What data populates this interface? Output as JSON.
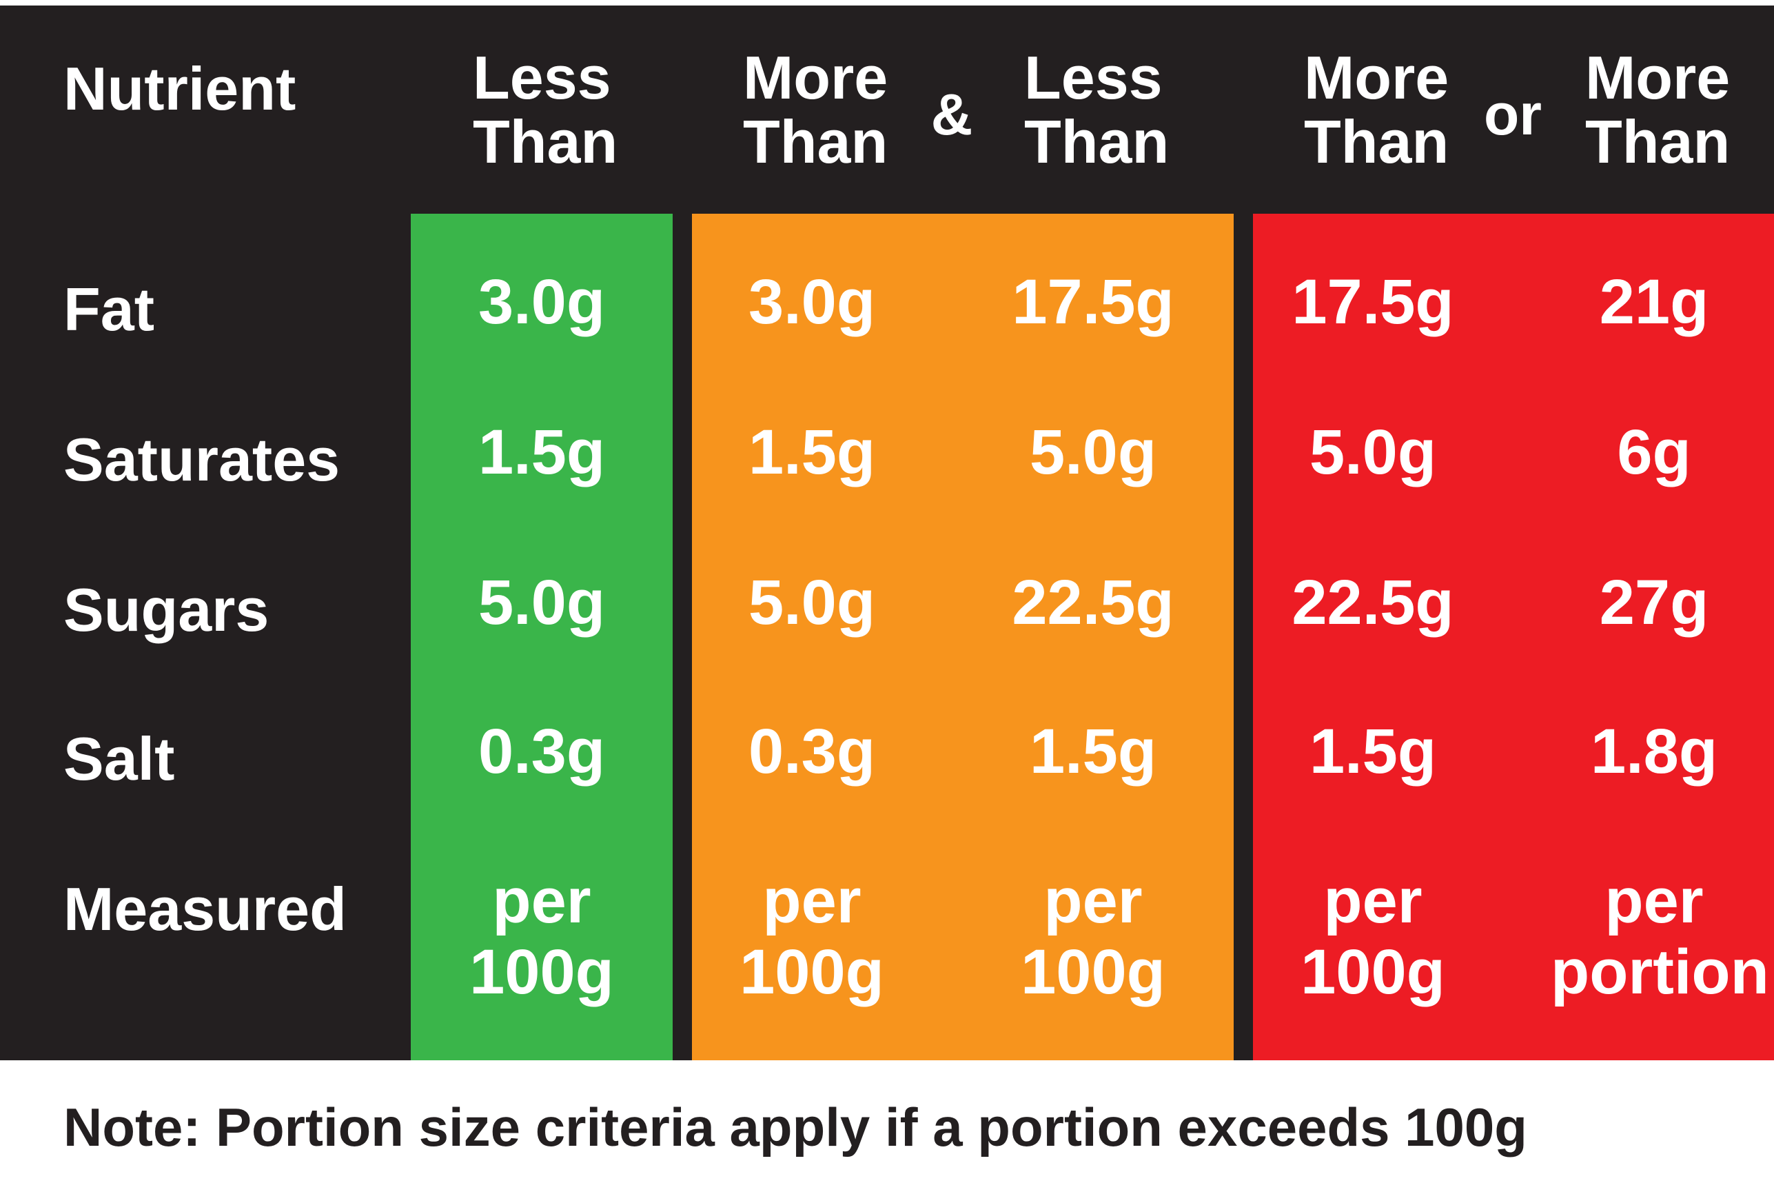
{
  "colors": {
    "background": "#231f20",
    "green": "#3ab54a",
    "amber": "#f7941d",
    "red": "#ed1c24",
    "text": "#ffffff"
  },
  "header": {
    "nutrient": "Nutrient",
    "columns": [
      {
        "line1": "Less",
        "line2": "Than"
      },
      {
        "line1": "More",
        "line2": "Than"
      },
      {
        "line1": "Less",
        "line2": "Than"
      },
      {
        "line1": "More",
        "line2": "Than"
      },
      {
        "line1": "More",
        "line2": "Than"
      }
    ],
    "connector_and": "&",
    "connector_or": "or"
  },
  "rows": [
    {
      "label": "Fat",
      "values": [
        "3.0g",
        "3.0g",
        "17.5g",
        "17.5g",
        "21g"
      ]
    },
    {
      "label": "Saturates",
      "values": [
        "1.5g",
        "1.5g",
        "5.0g",
        "5.0g",
        "6g"
      ]
    },
    {
      "label": "Sugars",
      "values": [
        "5.0g",
        "5.0g",
        "22.5g",
        "22.5g",
        "27g"
      ]
    },
    {
      "label": "Salt",
      "values": [
        "0.3g",
        "0.3g",
        "1.5g",
        "1.5g",
        "1.8g"
      ]
    }
  ],
  "measured": {
    "label": "Measured",
    "values": [
      {
        "line1": "per",
        "line2": "100g"
      },
      {
        "line1": "per",
        "line2": "100g"
      },
      {
        "line1": "per",
        "line2": "100g"
      },
      {
        "line1": "per",
        "line2": "100g"
      },
      {
        "line1": "per",
        "line2": "portion"
      }
    ]
  },
  "note": "Note: Portion size criteria apply if a portion exceeds 100g"
}
